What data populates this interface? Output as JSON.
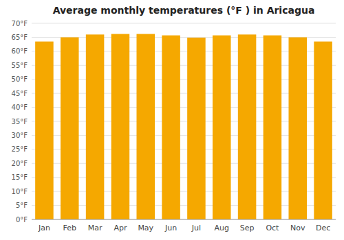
{
  "chart_data": {
    "type": "bar",
    "title": "Average monthly temperatures (°F ) in Aricagua",
    "categories": [
      "Jan",
      "Feb",
      "Mar",
      "Apr",
      "May",
      "Jun",
      "Jul",
      "Aug",
      "Sep",
      "Oct",
      "Nov",
      "Dec"
    ],
    "values": [
      63.5,
      65.0,
      66.0,
      66.2,
      66.2,
      65.7,
      64.9,
      65.7,
      66.0,
      65.7,
      65.0,
      63.5
    ],
    "color": "#F5A800",
    "ylim": [
      0,
      70
    ],
    "yticks": [
      {
        "value": 0,
        "label": "0°F"
      },
      {
        "value": 5,
        "label": "5°F"
      },
      {
        "value": 10,
        "label": "10°F"
      },
      {
        "value": 15,
        "label": "15°F"
      },
      {
        "value": 20,
        "label": "20°F"
      },
      {
        "value": 25,
        "label": "25°F"
      },
      {
        "value": 30,
        "label": "30°F"
      },
      {
        "value": 35,
        "label": "35°F"
      },
      {
        "value": 40,
        "label": "40°F"
      },
      {
        "value": 45,
        "label": "45°F"
      },
      {
        "value": 50,
        "label": "50°F"
      },
      {
        "value": 55,
        "label": "55°F"
      },
      {
        "value": 60,
        "label": "60°F"
      },
      {
        "value": 65,
        "label": "65°F"
      },
      {
        "value": 70,
        "label": "70°F"
      }
    ],
    "grid": true
  }
}
